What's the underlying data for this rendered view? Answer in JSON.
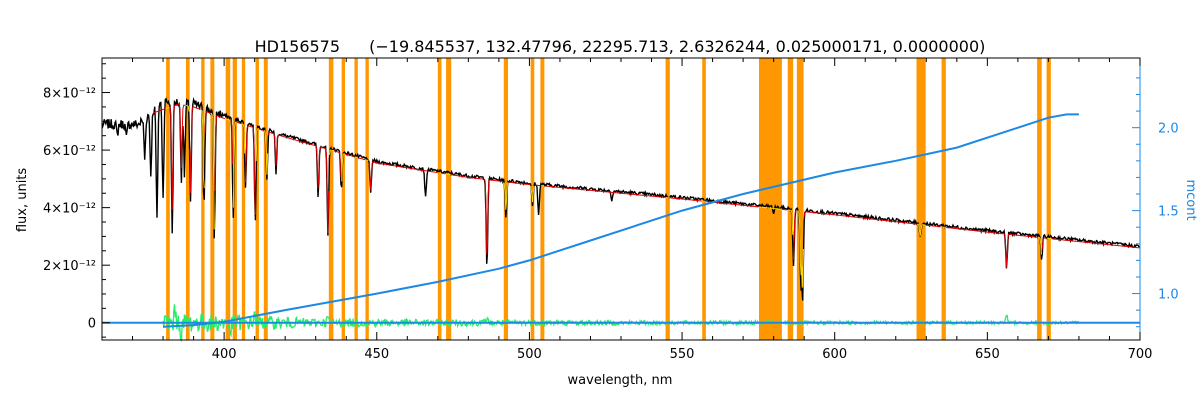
{
  "chart_data": {
    "type": "line",
    "title": "HD156575",
    "subtitle": "(−19.845537, 132.47796, 22295.713, 2.6326244, 0.025000171, 0.0000000)",
    "xlabel": "wavelength, nm",
    "ylabel": "flux, units",
    "y2label": "mcont",
    "xlim": [
      360,
      700
    ],
    "ylim": [
      -6e-13,
      9.2e-12
    ],
    "y2lim": [
      0.72,
      2.42
    ],
    "grid": false,
    "x_ticks": [
      {
        "value": 400,
        "label": "400"
      },
      {
        "value": 450,
        "label": "450"
      },
      {
        "value": 500,
        "label": "500"
      },
      {
        "value": 550,
        "label": "550"
      },
      {
        "value": 600,
        "label": "600"
      },
      {
        "value": 650,
        "label": "650"
      },
      {
        "value": 700,
        "label": "700"
      }
    ],
    "y_ticks": [
      {
        "value": 0,
        "label": "0"
      },
      {
        "value": 2e-12,
        "label": "2×10⁻¹²"
      },
      {
        "value": 4e-12,
        "label": "4×10⁻¹²"
      },
      {
        "value": 6e-12,
        "label": "6×10⁻¹²"
      },
      {
        "value": 8e-12,
        "label": "8×10⁻¹²"
      }
    ],
    "y2_ticks": [
      {
        "value": 1.0,
        "label": "1.0"
      },
      {
        "value": 1.5,
        "label": "1.5"
      },
      {
        "value": 2.0,
        "label": "2.0"
      }
    ],
    "masked_regions": [
      [
        381,
        382.2
      ],
      [
        387.5,
        388.7
      ],
      [
        392.5,
        393.6
      ],
      [
        395.5,
        396.8
      ],
      [
        400.5,
        402
      ],
      [
        402.8,
        404.2
      ],
      [
        405.8,
        406.9
      ],
      [
        410.3,
        411.4
      ],
      [
        413,
        414.3
      ],
      [
        434.3,
        435.8
      ],
      [
        438.5,
        439.6
      ],
      [
        442.7,
        443.8
      ],
      [
        446.3,
        447.4
      ],
      [
        470,
        471.2
      ],
      [
        472.7,
        474.4
      ],
      [
        491.6,
        493
      ],
      [
        500.4,
        501.6
      ],
      [
        503.6,
        504.9
      ],
      [
        544.6,
        546
      ],
      [
        556.6,
        557.8
      ],
      [
        575.2,
        582.7
      ],
      [
        584.6,
        586.4
      ],
      [
        587.6,
        589.8
      ],
      [
        626.8,
        629.8
      ],
      [
        635,
        636.4
      ],
      [
        666.3,
        667.8
      ],
      [
        669.4,
        670.8
      ]
    ],
    "series": [
      {
        "key": "observed",
        "color": "#000000",
        "axis": "left",
        "continuum": [
          [
            360,
            6.9e-12
          ],
          [
            372,
            6.9e-12
          ],
          [
            380,
            7.7e-12
          ],
          [
            390,
            7.6e-12
          ],
          [
            400,
            7.2e-12
          ],
          [
            420,
            6.5e-12
          ],
          [
            450,
            5.6e-12
          ],
          [
            480,
            5.1e-12
          ],
          [
            500,
            4.85e-12
          ],
          [
            550,
            4.35e-12
          ],
          [
            600,
            3.8e-12
          ],
          [
            650,
            3.2e-12
          ],
          [
            700,
            2.65e-12
          ]
        ],
        "lines": [
          [
            365,
            4e-13
          ],
          [
            368,
            5e-13
          ],
          [
            374,
            1.4e-12
          ],
          [
            376,
            2.2e-12
          ],
          [
            378,
            4e-12
          ],
          [
            380,
            3.4e-12
          ],
          [
            383,
            4.6e-12
          ],
          [
            386,
            2.6e-12
          ],
          [
            387,
            2.5e-12
          ],
          [
            389,
            3.4e-12
          ],
          [
            393.4,
            3.4e-12
          ],
          [
            396.8,
            4.4e-12
          ],
          [
            403,
            3.5e-12
          ],
          [
            407,
            2.3e-12
          ],
          [
            410.2,
            3.3e-12
          ],
          [
            414,
            1.7e-12
          ],
          [
            417,
            1.4e-12
          ],
          [
            430.8,
            1.8e-12
          ],
          [
            434,
            3.1e-12
          ],
          [
            438.4,
            1.3e-12
          ],
          [
            448,
            1.2e-12
          ],
          [
            466,
            1e-12
          ],
          [
            486.1,
            3.2e-12
          ],
          [
            492.3,
            1.3e-12
          ],
          [
            501,
            8e-13
          ],
          [
            503,
            1.1e-12
          ],
          [
            527,
            3e-13
          ],
          [
            580,
            2e-13
          ],
          [
            586.5,
            2e-12
          ],
          [
            588.9,
            2.6e-12
          ],
          [
            589.5,
            3e-12
          ],
          [
            628,
            5e-13
          ],
          [
            656.3,
            1.3e-12
          ],
          [
            667.8,
            8e-13
          ]
        ]
      },
      {
        "key": "model",
        "color": "#e00000",
        "axis": "left",
        "xrange": [
          377,
          700
        ],
        "continuum": [
          [
            377,
            7.3e-12
          ],
          [
            385,
            7.6e-12
          ],
          [
            390,
            7.5e-12
          ],
          [
            400,
            7.1e-12
          ],
          [
            420,
            6.45e-12
          ],
          [
            450,
            5.55e-12
          ],
          [
            480,
            5.05e-12
          ],
          [
            500,
            4.8e-12
          ],
          [
            550,
            4.3e-12
          ],
          [
            600,
            3.75e-12
          ],
          [
            650,
            3.15e-12
          ],
          [
            700,
            2.6e-12
          ]
        ],
        "lines": [
          [
            383,
            3.6e-12
          ],
          [
            386,
            2.2e-12
          ],
          [
            389,
            3e-12
          ],
          [
            393.4,
            3e-12
          ],
          [
            396.8,
            4.1e-12
          ],
          [
            403,
            3e-12
          ],
          [
            407,
            2e-12
          ],
          [
            410.2,
            3.1e-12
          ],
          [
            414,
            1.5e-12
          ],
          [
            417,
            1.1e-12
          ],
          [
            430.8,
            1.5e-12
          ],
          [
            434,
            2.9e-12
          ],
          [
            438.4,
            1.1e-12
          ],
          [
            448,
            1e-12
          ],
          [
            486.1,
            2.9e-12
          ],
          [
            492.3,
            1e-12
          ],
          [
            501,
            6e-13
          ],
          [
            586.5,
            1.7e-12
          ],
          [
            588.9,
            2.3e-12
          ],
          [
            589.5,
            2.6e-12
          ],
          [
            628,
            4e-13
          ],
          [
            656.3,
            1.2e-12
          ],
          [
            667.8,
            6e-13
          ]
        ]
      },
      {
        "key": "model-masked",
        "color": "#ffd700",
        "axis": "left",
        "xrange": [
          377,
          700
        ]
      },
      {
        "key": "residuals",
        "color": "#22ee66",
        "axis": "left",
        "xrange": [
          380,
          680
        ],
        "amplitude": [
          [
            380,
            3.5e-13
          ],
          [
            400,
            3e-13
          ],
          [
            430,
            1.5e-13
          ],
          [
            470,
            1.2e-13
          ],
          [
            550,
            7e-14
          ],
          [
            680,
            5e-14
          ]
        ],
        "spikes": [
          [
            384,
            4.5e-13
          ],
          [
            386,
            -4e-13
          ],
          [
            402,
            -3.5e-13
          ],
          [
            410,
            3e-13
          ],
          [
            434,
            2e-13
          ],
          [
            486,
            1.8e-13
          ],
          [
            656.3,
            3e-13
          ]
        ]
      },
      {
        "key": "zero-line",
        "color": "#1e88e5",
        "axis": "left",
        "points": [
          [
            360,
            0
          ],
          [
            700,
            0
          ]
        ]
      },
      {
        "key": "mcont",
        "color": "#1e88e5",
        "axis": "right",
        "points": [
          [
            380,
            0.8
          ],
          [
            390,
            0.81
          ],
          [
            400,
            0.83
          ],
          [
            420,
            0.9
          ],
          [
            450,
            1.0
          ],
          [
            470,
            1.07
          ],
          [
            490,
            1.15
          ],
          [
            500,
            1.2
          ],
          [
            520,
            1.32
          ],
          [
            550,
            1.5
          ],
          [
            570,
            1.6
          ],
          [
            600,
            1.73
          ],
          [
            620,
            1.8
          ],
          [
            640,
            1.88
          ],
          [
            660,
            2.0
          ],
          [
            670,
            2.06
          ],
          [
            676,
            2.08
          ],
          [
            680,
            2.08
          ]
        ]
      }
    ]
  }
}
